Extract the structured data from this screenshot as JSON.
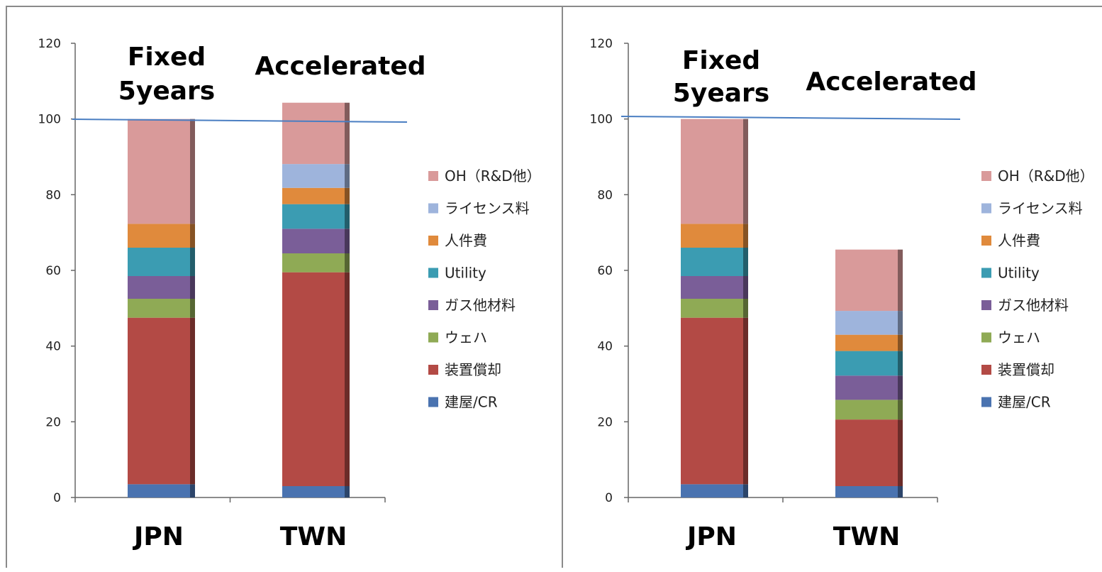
{
  "colors": {
    "建屋/CR": "#4a73b0",
    "装置償却": "#b34a45",
    "ウェハ": "#8faa55",
    "ガス他材料": "#7a5e98",
    "Utility": "#3b9cb2",
    "人件費": "#e08a3c",
    "ライセンス料": "#9eb4dc",
    "OH（R&D他）": "#d99a9a"
  },
  "legend": [
    "OH（R&D他）",
    "ライセンス料",
    "人件費",
    "Utility",
    "ガス他材料",
    "ウェハ",
    "装置償却",
    "建屋/CR"
  ],
  "chart_data": [
    {
      "type": "bar",
      "stacked": true,
      "categories": [
        "JPN",
        "TWN"
      ],
      "ylim": [
        0,
        120
      ],
      "yticks": [
        0,
        20,
        40,
        60,
        80,
        100,
        120
      ],
      "reference_line": 100,
      "annotations": [
        {
          "category": "JPN",
          "lines": [
            "Fixed",
            "5years"
          ]
        },
        {
          "category": "TWN",
          "lines": [
            "Accelerated"
          ]
        }
      ],
      "series": [
        {
          "name": "建屋/CR",
          "values": [
            3.5,
            3
          ]
        },
        {
          "name": "装置償却",
          "values": [
            44,
            56.5
          ]
        },
        {
          "name": "ウェハ",
          "values": [
            5,
            5
          ]
        },
        {
          "name": "ガス他材料",
          "values": [
            6,
            6.5
          ]
        },
        {
          "name": "Utility",
          "values": [
            7.5,
            6.5
          ]
        },
        {
          "name": "人件費",
          "values": [
            6.3,
            4.3
          ]
        },
        {
          "name": "ライセンス料",
          "values": [
            0,
            6.3
          ]
        },
        {
          "name": "OH（R&D他）",
          "values": [
            27.7,
            16.2
          ]
        }
      ]
    },
    {
      "type": "bar",
      "stacked": true,
      "categories": [
        "JPN",
        "TWN"
      ],
      "ylim": [
        0,
        120
      ],
      "yticks": [
        0,
        20,
        40,
        60,
        80,
        100,
        120
      ],
      "reference_line": 100,
      "annotations": [
        {
          "category": "JPN",
          "lines": [
            "Fixed",
            "5years"
          ]
        },
        {
          "category": "TWN",
          "lines": [
            "Accelerated"
          ]
        }
      ],
      "series": [
        {
          "name": "建屋/CR",
          "values": [
            3.5,
            3
          ]
        },
        {
          "name": "装置償却",
          "values": [
            44,
            17.6
          ]
        },
        {
          "name": "ウェハ",
          "values": [
            5,
            5.2
          ]
        },
        {
          "name": "ガス他材料",
          "values": [
            6,
            6.4
          ]
        },
        {
          "name": "Utility",
          "values": [
            7.5,
            6.5
          ]
        },
        {
          "name": "人件費",
          "values": [
            6.3,
            4.3
          ]
        },
        {
          "name": "ライセンス料",
          "values": [
            0,
            6.3
          ]
        },
        {
          "name": "OH（R&D他）",
          "values": [
            27.7,
            16.2
          ]
        }
      ]
    }
  ]
}
